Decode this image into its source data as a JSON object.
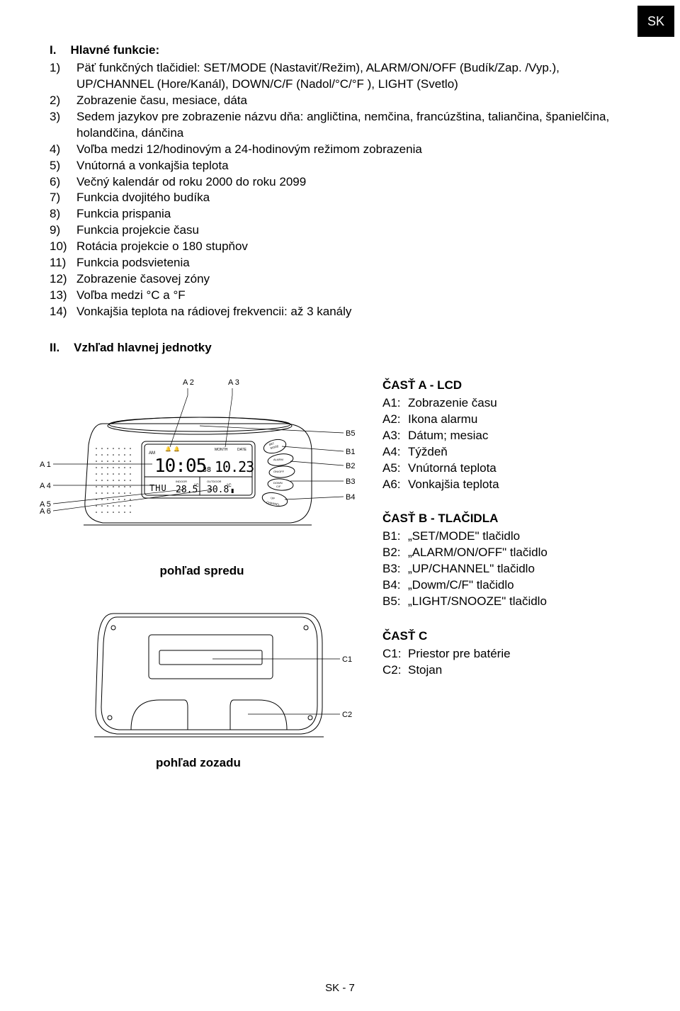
{
  "lang_tab": "SK",
  "section1": {
    "num": "I.",
    "title": "Hlavné funkcie:",
    "items": [
      {
        "n": "1)",
        "t": "Päť funkčných tlačidiel: SET/MODE (Nastaviť/Režim), ALARM/ON/OFF (Budík/Zap. /Vyp.), UP/CHANNEL (Hore/Kanál), DOWN/C/F (Nadol/°C/°F ), LIGHT (Svetlo)"
      },
      {
        "n": "2)",
        "t": "Zobrazenie času, mesiace, dáta"
      },
      {
        "n": "3)",
        "t": "Sedem jazykov pre zobrazenie názvu dňa: angličtina, nemčina, francúzština, taliančina, španielčina, holandčina, dánčina"
      },
      {
        "n": "4)",
        "t": "Voľba medzi 12/hodinovým a 24-hodinovým režimom zobrazenia"
      },
      {
        "n": "5)",
        "t": "Vnútorná a vonkajšia teplota"
      },
      {
        "n": "6)",
        "t": "Večný kalendár od roku 2000 do roku 2099"
      },
      {
        "n": "7)",
        "t": "Funkcia dvojitého budíka"
      },
      {
        "n": "8)",
        "t": "Funkcia prispania"
      },
      {
        "n": "9)",
        "t": "Funkcia projekcie času"
      },
      {
        "n": "10)",
        "t": "Rotácia projekcie o 180 stupňov"
      },
      {
        "n": "11)",
        "t": "Funkcia podsvietenia"
      },
      {
        "n": "12)",
        "t": "Zobrazenie časovej zóny"
      },
      {
        "n": "13)",
        "t": "Voľba medzi °C a °F"
      },
      {
        "n": "14)",
        "t": "Vonkajšia teplota na rádiovej frekvencii: až 3 kanály"
      }
    ]
  },
  "section2": {
    "num": "II.",
    "title": "Vzhľad hlavnej jednotky"
  },
  "front": {
    "caption": "pohľad spredu",
    "labels_left": [
      {
        "k": "A 1"
      },
      {
        "k": "A 4"
      },
      {
        "k": "A 5"
      },
      {
        "k": "A 6"
      }
    ],
    "labels_top": [
      {
        "k": "A 2"
      },
      {
        "k": "A 3"
      }
    ],
    "labels_right": [
      {
        "k": "B5"
      },
      {
        "k": "B1"
      },
      {
        "k": "B2"
      },
      {
        "k": "B3"
      },
      {
        "k": "B4"
      }
    ],
    "lcd": {
      "am": "AM",
      "month": "MONTH",
      "date": "DATE",
      "time": "10:05",
      "sec": "38",
      "md": "10.23",
      "day": "THU",
      "t1": "28.5",
      "u1": "°C",
      "t2": "30.8",
      "u2": "°C",
      "indoor": "INDOOR",
      "outdoor": "OUTDOOR"
    },
    "buttons": [
      "SET MODE",
      "ALARM",
      "ON/OFF",
      "DOWN C/F",
      "UP CHANNEL"
    ]
  },
  "back": {
    "caption": "pohľad zozadu",
    "labels": [
      {
        "k": "C1"
      },
      {
        "k": "C2"
      }
    ]
  },
  "partA": {
    "head": "ČASŤ A - LCD",
    "rows": [
      {
        "k": "A1:",
        "v": "Zobrazenie času"
      },
      {
        "k": "A2:",
        "v": "Ikona alarmu"
      },
      {
        "k": "A3:",
        "v": "Dátum; mesiac"
      },
      {
        "k": "A4:",
        "v": "Týždeň"
      },
      {
        "k": "A5:",
        "v": "Vnútorná teplota"
      },
      {
        "k": "A6:",
        "v": "Vonkajšia teplota"
      }
    ]
  },
  "partB": {
    "head": "ČASŤ B - TLAČIDLA",
    "rows": [
      {
        "k": "B1:",
        "v": "„SET/MODE\" tlačidlo"
      },
      {
        "k": "B2:",
        "v": "„ALARM/ON/OFF\" tlačidlo"
      },
      {
        "k": "B3:",
        "v": "„UP/CHANNEL\" tlačidlo"
      },
      {
        "k": "B4:",
        "v": "„Dowm/C/F\" tlačidlo"
      },
      {
        "k": "B5:",
        "v": "„LIGHT/SNOOZE\" tlačidlo"
      }
    ]
  },
  "partC": {
    "head": "ČASŤ C",
    "rows": [
      {
        "k": "C1:",
        "v": "Priestor pre batérie"
      },
      {
        "k": "C2:",
        "v": "Stojan"
      }
    ]
  },
  "footer": "SK - 7",
  "colors": {
    "bg": "#ffffff",
    "fg": "#000000",
    "line": "#000000"
  }
}
